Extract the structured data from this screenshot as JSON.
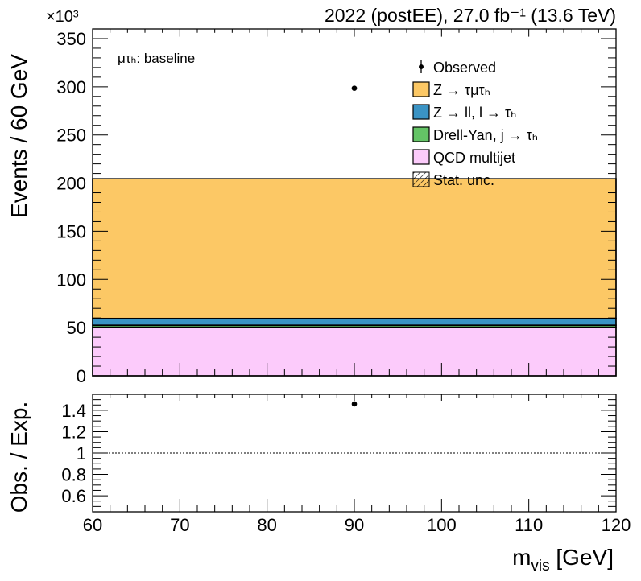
{
  "chart_data": {
    "type": "bar",
    "stacked": true,
    "header_right": "2022 (postEE), 27.0 fb⁻¹ (13.6 TeV)",
    "header_left_multiplier": "×10³",
    "category_label": "μτₕ: baseline",
    "xlabel": "m_vis [GeV]",
    "ylabel_top": "Events / 60 GeV",
    "ylabel_bottom": "Obs. / Exp.",
    "x_bin": [
      60,
      120
    ],
    "xlim": [
      60,
      120
    ],
    "ylim_top": [
      0,
      360
    ],
    "ylim_bottom": [
      0.45,
      1.55
    ],
    "x_ticks": [
      60,
      70,
      80,
      90,
      100,
      110,
      120
    ],
    "y_ticks_top": [
      0,
      50,
      100,
      150,
      200,
      250,
      300,
      350
    ],
    "y_ticks_bottom": [
      0.6,
      0.8,
      1,
      1.2,
      1.4
    ],
    "series": [
      {
        "name": "QCD multijet",
        "values": [
          50.5
        ],
        "color": "#fccbfb"
      },
      {
        "name": "Drell-Yan, j → τₕ",
        "values": [
          2.0
        ],
        "color": "#64c466"
      },
      {
        "name": "Z → ll, l → τₕ",
        "values": [
          7.0
        ],
        "color": "#3a93c4"
      },
      {
        "name": "Z → τμτₕ",
        "values": [
          145.0
        ],
        "color": "#fcc865"
      }
    ],
    "observed": {
      "name": "Observed",
      "x": [
        90
      ],
      "y": [
        298.5
      ]
    },
    "ratio": {
      "x": [
        90
      ],
      "y": [
        1.46
      ],
      "reference": 1.0
    },
    "legend": [
      {
        "label": "Observed",
        "kind": "marker"
      },
      {
        "label": "Z → τμτₕ",
        "kind": "fill",
        "color": "#fcc865"
      },
      {
        "label": "Z → ll, l → τₕ",
        "kind": "fill",
        "color": "#3a93c4"
      },
      {
        "label": "Drell-Yan, j  → τₕ",
        "kind": "fill",
        "color": "#64c466"
      },
      {
        "label": "QCD multijet",
        "kind": "fill",
        "color": "#fccbfb"
      },
      {
        "label": "Stat. unc.",
        "kind": "hatch"
      }
    ],
    "legend_position": "top-right",
    "grid": false
  }
}
